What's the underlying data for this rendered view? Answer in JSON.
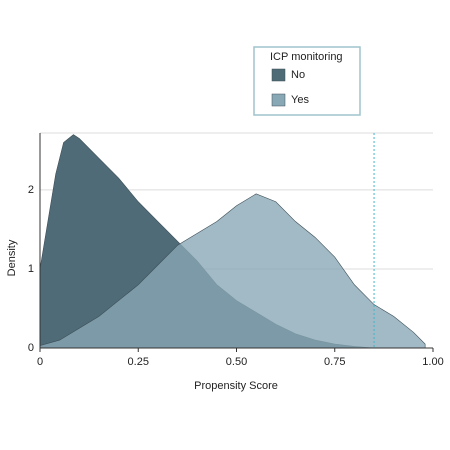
{
  "chart_data": {
    "type": "density",
    "x_label": "Propensity Score",
    "y_label": "Density",
    "legend_title": "ICP monitoring",
    "series": [
      {
        "name": "No",
        "color": "#4e6b77",
        "x": [
          0,
          0.02,
          0.04,
          0.06,
          0.085,
          0.1,
          0.15,
          0.2,
          0.25,
          0.3,
          0.35,
          0.4,
          0.45,
          0.5,
          0.55,
          0.6,
          0.65,
          0.7,
          0.75,
          0.8,
          0.85
        ],
        "values": [
          1.0,
          1.6,
          2.2,
          2.6,
          2.7,
          2.65,
          2.4,
          2.15,
          1.85,
          1.6,
          1.35,
          1.1,
          0.8,
          0.6,
          0.45,
          0.3,
          0.18,
          0.1,
          0.05,
          0.02,
          0
        ]
      },
      {
        "name": "Yes",
        "color": "#89a8b5",
        "x": [
          0,
          0.05,
          0.1,
          0.15,
          0.2,
          0.25,
          0.3,
          0.35,
          0.4,
          0.45,
          0.5,
          0.55,
          0.6,
          0.65,
          0.7,
          0.75,
          0.8,
          0.85,
          0.9,
          0.95,
          0.98
        ],
        "values": [
          0.03,
          0.1,
          0.25,
          0.4,
          0.6,
          0.8,
          1.05,
          1.3,
          1.45,
          1.6,
          1.8,
          1.95,
          1.85,
          1.6,
          1.4,
          1.15,
          0.8,
          0.55,
          0.4,
          0.2,
          0.05
        ]
      }
    ],
    "reference_line": 0.85,
    "reference_color": "#3fb6c8",
    "xlim": [
      0,
      1
    ],
    "xticks": [
      0,
      0.25,
      {
        "value": 0.5,
        "label": "0.50"
      },
      0.75,
      {
        "value": 1,
        "label": "1.00"
      }
    ],
    "ylim": [
      0,
      2.72
    ],
    "yticks": [
      0,
      1,
      2
    ],
    "grid": true
  }
}
